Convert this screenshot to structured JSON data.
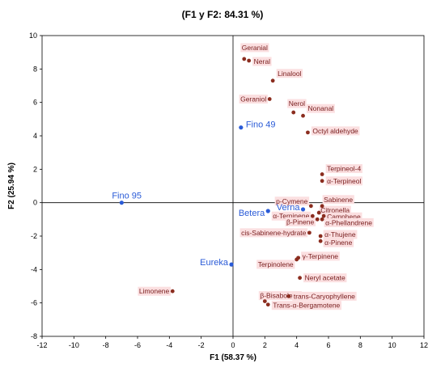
{
  "chart_data": {
    "type": "scatter",
    "title": "(F1 y F2: 84.31 %)",
    "xlabel": "F1 (58.37 %)",
    "ylabel": "F2 (25.94 %)",
    "xlim": [
      -12,
      12
    ],
    "ylim": [
      -8,
      10
    ],
    "x_ticks": [
      -12,
      -10,
      -8,
      -6,
      -4,
      -2,
      0,
      2,
      4,
      6,
      8,
      10,
      12
    ],
    "y_ticks": [
      -8,
      -6,
      -4,
      -2,
      0,
      2,
      4,
      6,
      8,
      10
    ],
    "grid": false,
    "colors": {
      "variables": "#8b2d1f",
      "observations": "#2a5bd7",
      "variable_label_bg": "#fbdfe0"
    },
    "series": [
      {
        "kind": "variables",
        "points": [
          {
            "label": "Geranial",
            "x": 0.7,
            "y": 8.6
          },
          {
            "label": "Neral",
            "x": 1.0,
            "y": 8.5
          },
          {
            "label": "Linalool",
            "x": 2.5,
            "y": 7.3
          },
          {
            "label": "Geraniol",
            "x": 2.3,
            "y": 6.2
          },
          {
            "label": "Nerol",
            "x": 3.8,
            "y": 5.4
          },
          {
            "label": "Nonanal",
            "x": 4.4,
            "y": 5.2
          },
          {
            "label": "Octyl aldehyde",
            "x": 4.7,
            "y": 4.2
          },
          {
            "label": "Terpineol-4",
            "x": 5.6,
            "y": 1.7
          },
          {
            "label": "α-Terpineol",
            "x": 5.6,
            "y": 1.3
          },
          {
            "label": "p-Cymene",
            "x": 4.9,
            "y": -0.2
          },
          {
            "label": "Sabinene",
            "x": 5.6,
            "y": -0.2
          },
          {
            "label": "Citronella",
            "x": 5.4,
            "y": -0.6
          },
          {
            "label": "α-Terpinene",
            "x": 5.0,
            "y": -0.8
          },
          {
            "label": "Camphene",
            "x": 5.7,
            "y": -0.8
          },
          {
            "label": "β-Pinene",
            "x": 5.3,
            "y": -1.0
          },
          {
            "label": "α-Phellandrene",
            "x": 5.6,
            "y": -1.0
          },
          {
            "label": "cis-Sabinene-hydrate",
            "x": 4.8,
            "y": -1.8
          },
          {
            "label": "α-Thujene",
            "x": 5.5,
            "y": -2.0
          },
          {
            "label": "α-Pinene",
            "x": 5.5,
            "y": -2.3
          },
          {
            "label": "γ-Terpinene",
            "x": 4.1,
            "y": -3.3
          },
          {
            "label": "Terpinolene",
            "x": 4.0,
            "y": -3.4
          },
          {
            "label": "Neryl acetate",
            "x": 4.2,
            "y": -4.5
          },
          {
            "label": "Limonene",
            "x": -3.8,
            "y": -5.3
          },
          {
            "label": "β-Bisabolene",
            "x": 2.0,
            "y": -5.9
          },
          {
            "label": "trans-Caryophyllene",
            "x": 3.5,
            "y": -5.6
          },
          {
            "label": "Trans-α-Bergamotene",
            "x": 2.2,
            "y": -6.1
          }
        ]
      },
      {
        "kind": "observations",
        "points": [
          {
            "label": "Fino 49",
            "x": 0.5,
            "y": 4.5
          },
          {
            "label": "Fino 95",
            "x": -7.0,
            "y": 0.0
          },
          {
            "label": "Verna",
            "x": 4.4,
            "y": -0.4
          },
          {
            "label": "Betera",
            "x": 2.2,
            "y": -0.5
          },
          {
            "label": "Eureka",
            "x": -0.1,
            "y": -3.7
          }
        ]
      }
    ]
  }
}
